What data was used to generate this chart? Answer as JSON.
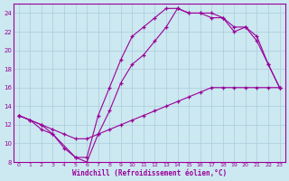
{
  "xlabel": "Windchill (Refroidissement éolien,°C)",
  "bg_color": "#cce8f0",
  "line_color": "#990099",
  "grid_color": "#aaccdd",
  "xmin": -0.5,
  "xmax": 23.5,
  "ymin": 8,
  "ymax": 25,
  "yticks": [
    8,
    10,
    12,
    14,
    16,
    18,
    20,
    22,
    24
  ],
  "xticks": [
    0,
    1,
    2,
    3,
    4,
    5,
    6,
    7,
    8,
    9,
    10,
    11,
    12,
    13,
    14,
    15,
    16,
    17,
    18,
    19,
    20,
    21,
    22,
    23
  ],
  "line1_x": [
    0,
    1,
    2,
    3,
    4,
    5,
    6,
    7,
    8,
    9,
    10,
    11,
    12,
    13,
    14,
    15,
    16,
    17,
    18,
    19,
    20,
    21,
    22,
    23
  ],
  "line1_y": [
    13,
    12.5,
    12.0,
    11.5,
    11.0,
    10.5,
    10.5,
    11.0,
    11.5,
    12.0,
    12.5,
    13.0,
    13.5,
    14.0,
    14.5,
    15.0,
    15.5,
    16.0,
    16.0,
    16.0,
    16.0,
    16.0,
    16.0,
    16.0
  ],
  "line2_x": [
    0,
    1,
    2,
    3,
    4,
    5,
    6,
    7,
    8,
    9,
    10,
    11,
    12,
    13,
    14,
    15,
    16,
    17,
    18,
    19,
    20,
    21,
    22,
    23
  ],
  "line2_y": [
    13,
    12.5,
    11.5,
    11.0,
    9.5,
    8.5,
    8.0,
    11.0,
    13.5,
    16.5,
    18.5,
    19.5,
    21.0,
    22.5,
    24.5,
    24.0,
    24.0,
    24.0,
    23.5,
    22.0,
    22.5,
    21.0,
    18.5,
    16.0
  ],
  "line3_x": [
    0,
    2,
    3,
    5,
    6,
    7,
    8,
    9,
    10,
    11,
    12,
    13,
    14,
    15,
    16,
    17,
    18,
    19,
    20,
    21,
    22,
    23
  ],
  "line3_y": [
    13,
    12.0,
    11.0,
    8.5,
    8.5,
    13.0,
    16.0,
    19.0,
    21.5,
    22.5,
    23.5,
    24.5,
    24.5,
    24.0,
    24.0,
    23.5,
    23.5,
    22.5,
    22.5,
    21.5,
    18.5,
    16.0
  ]
}
